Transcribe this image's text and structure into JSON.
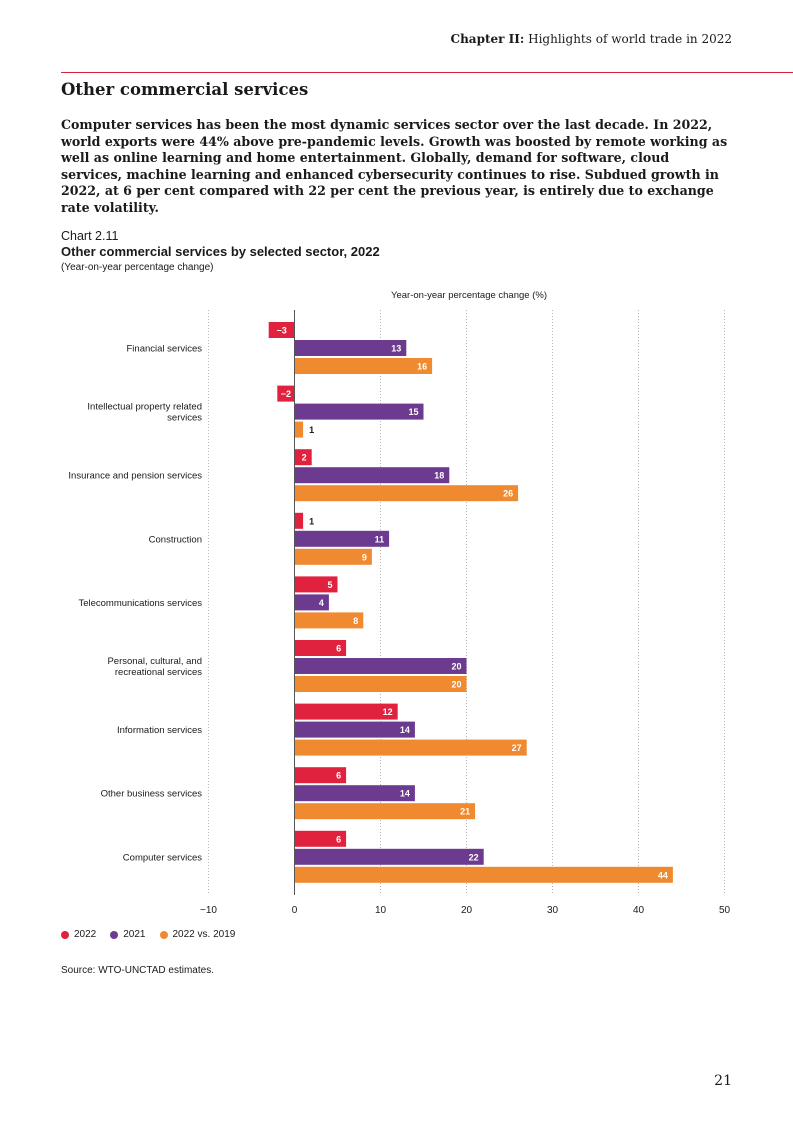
{
  "header": {
    "chapter": "Chapter II:",
    "title": "Highlights of world trade in 2022"
  },
  "section_title": "Other commercial services",
  "intro_text": "Computer services has been the most dynamic services sector over the last decade. In 2022, world exports were 44% above pre-pandemic levels. Growth was boosted by remote working as well as online learning and home entertainment. Globally, demand for software, cloud services, machine learning and enhanced cybersecurity continues to rise. Subdued growth in 2022, at 6 per cent compared with 22 per cent the previous year, is entirely due to exchange rate volatility.",
  "chart_number": "Chart 2.11",
  "source": "Source: WTO-UNCTAD estimates.",
  "page_number": "21",
  "chart_data": {
    "type": "bar",
    "orientation": "horizontal",
    "title": "Other commercial services by selected sector, 2022",
    "subtitle": "(Year-on-year percentage change)",
    "xlabel": "Year-on-year percentage change (%)",
    "ylabel": "",
    "xlim": [
      -10,
      50
    ],
    "xticks": [
      -10,
      0,
      10,
      20,
      30,
      40,
      50
    ],
    "xtick_labels": [
      "−10",
      "0",
      "10",
      "20",
      "30",
      "40",
      "50"
    ],
    "grid": "vertical dotted",
    "legend_position": "bottom-left",
    "categories": [
      [
        "Financial services"
      ],
      [
        "Intellectual property related",
        "services"
      ],
      [
        "Insurance and pension services"
      ],
      [
        "Construction"
      ],
      [
        "Telecommunications services"
      ],
      [
        "Personal, cultural, and",
        "recreational services"
      ],
      [
        "Information services"
      ],
      [
        "Other business services"
      ],
      [
        "Computer services"
      ]
    ],
    "series": [
      {
        "name": "2022",
        "color": "#e0223f",
        "values": [
          -3,
          -2,
          2,
          1,
          5,
          6,
          12,
          6,
          6
        ],
        "labels": [
          "−3",
          "−2",
          "2",
          "1",
          "5",
          "6",
          "12",
          "6",
          "6"
        ]
      },
      {
        "name": "2021",
        "color": "#6c3a8f",
        "values": [
          13,
          15,
          18,
          11,
          4,
          20,
          14,
          14,
          22
        ],
        "labels": [
          "13",
          "15",
          "18",
          "11",
          "4",
          "20",
          "14",
          "14",
          "22"
        ]
      },
      {
        "name": "2022 vs. 2019",
        "color": "#f08a30",
        "values": [
          16,
          1,
          26,
          9,
          8,
          20,
          27,
          21,
          44
        ],
        "labels": [
          "16",
          "1",
          "26",
          "9",
          "8",
          "20",
          "27",
          "21",
          "44"
        ]
      }
    ]
  }
}
